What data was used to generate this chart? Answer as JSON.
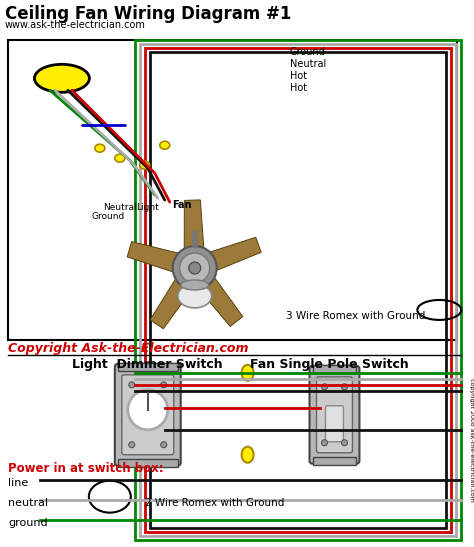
{
  "title": "Ceiling Fan Wiring Diagram #1",
  "subtitle": "www.ask-the-electrician.com",
  "copyright": "Copyright Ask-the-Electrician.com",
  "copyright_side": "copyright 2008 ask-the-electrician.com",
  "bg_color": "#ffffff",
  "wire_green": "#008800",
  "wire_red": "#cc0000",
  "wire_black": "#111111",
  "wire_white": "#aaaaaa",
  "wire_blue": "#0000cc",
  "wire_yellow": "#ffee00",
  "label_ground": "Ground",
  "label_neutral": "Neutral",
  "label_hot1": "Hot",
  "label_hot2": "Hot",
  "label_neutral_fan": "Neutral",
  "label_light": "Light",
  "label_ground_fan": "Ground",
  "label_fan": "Fan",
  "label_3wire": "3 Wire Romex with Ground",
  "label_2wire": "2 Wire Romex with Ground",
  "label_light_dimmer": "Light  Dimmer Switch",
  "label_fan_switch": "Fan Single Pole Switch",
  "label_power": "Power in at switch box:",
  "label_line": "line",
  "label_neutral2": "neutral",
  "label_ground2": "ground"
}
